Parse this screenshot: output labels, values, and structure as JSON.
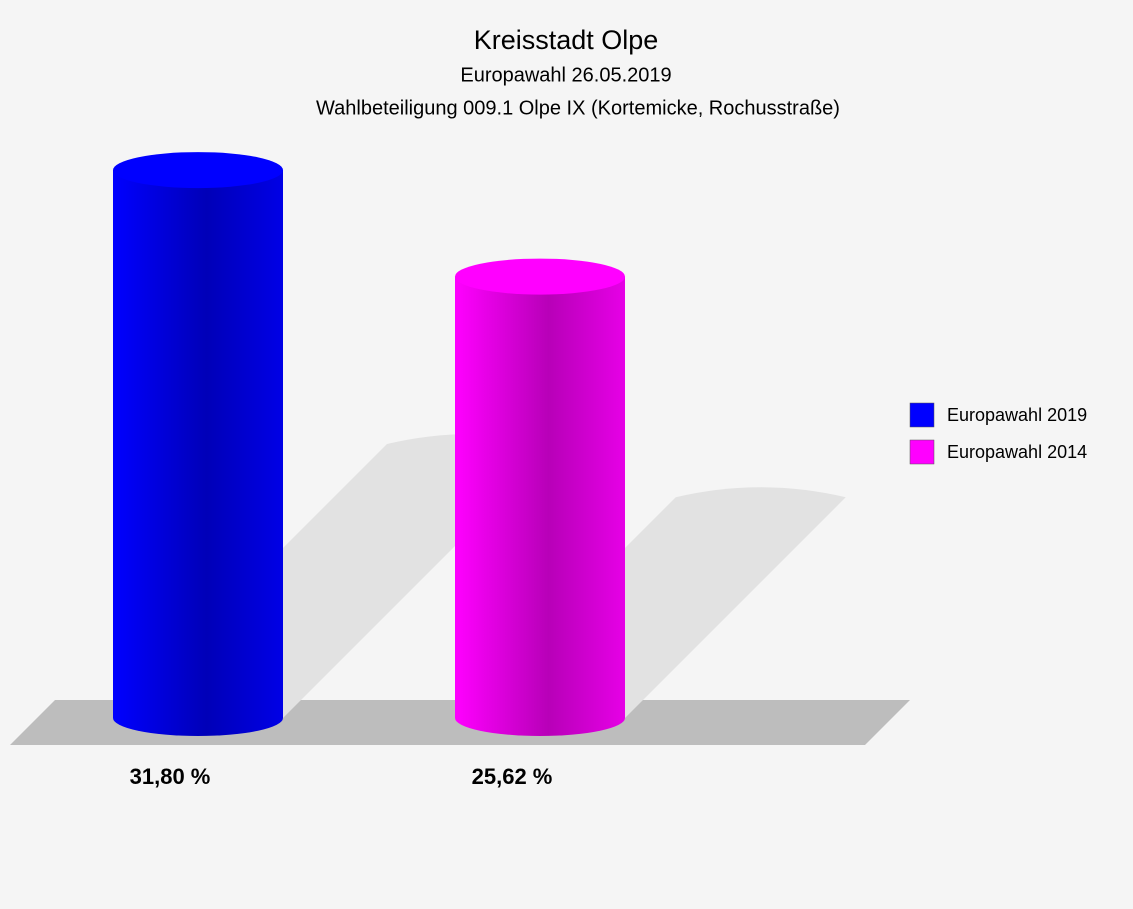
{
  "chart_data": {
    "type": "bar",
    "title": "Kreisstadt Olpe",
    "subtitle": [
      "Europawahl 26.05.2019",
      "Wahlbeteiligung 009.1 Olpe IX (Kortemicke, Rochusstraße)"
    ],
    "categories": [
      null
    ],
    "series": [
      {
        "name": "Europawahl 2019",
        "color": "#0000ff",
        "values": [
          31.8
        ],
        "value_labels": [
          "31,80 %"
        ]
      },
      {
        "name": "Europawahl 2014",
        "color": "#ff00ff",
        "values": [
          25.62
        ],
        "value_labels": [
          "25,62 %"
        ]
      }
    ],
    "legend": "right"
  }
}
